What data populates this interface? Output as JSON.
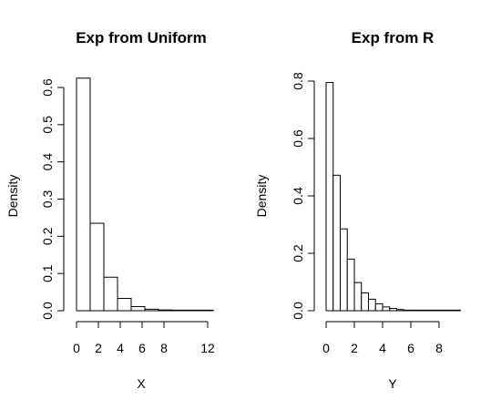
{
  "chart_data": [
    {
      "type": "bar",
      "title": "Exp from Uniform",
      "xlabel": "X",
      "ylabel": "Density",
      "bin_width": 1.25,
      "bins_start": [
        0,
        1.25,
        2.5,
        3.75,
        5,
        6.25,
        7.5,
        8.75,
        10,
        11.25
      ],
      "values": [
        0.625,
        0.235,
        0.09,
        0.033,
        0.011,
        0.004,
        0.002,
        0.001,
        0.0005,
        0.0003
      ],
      "xlim": [
        0,
        12
      ],
      "ylim": [
        0,
        0.6
      ],
      "xticks": [
        0,
        2,
        4,
        6,
        8,
        12
      ],
      "yticks": [
        0.0,
        0.1,
        0.2,
        0.3,
        0.4,
        0.5,
        0.6
      ],
      "ytick_labels": [
        "0.0",
        "0.1",
        "0.2",
        "0.3",
        "0.4",
        "0.5",
        "0.6"
      ]
    },
    {
      "type": "bar",
      "title": "Exp from R",
      "xlabel": "Y",
      "ylabel": "Density",
      "bin_width": 0.5,
      "bins_start": [
        0,
        0.5,
        1.0,
        1.5,
        2.0,
        2.5,
        3.0,
        3.5,
        4.0,
        4.5,
        5.0,
        5.5,
        6.0,
        6.5,
        7.0,
        7.5,
        8.0,
        8.5,
        9.0
      ],
      "values": [
        0.795,
        0.472,
        0.285,
        0.18,
        0.098,
        0.062,
        0.04,
        0.024,
        0.013,
        0.008,
        0.004,
        0.002,
        0.001,
        0.0008,
        0.0005,
        0.0003,
        0.0002,
        0.0001,
        0.0001
      ],
      "xlim": [
        0,
        8
      ],
      "ylim": [
        0,
        0.8
      ],
      "xticks": [
        0,
        2,
        4,
        6,
        8
      ],
      "yticks": [
        0.0,
        0.2,
        0.4,
        0.6,
        0.8
      ],
      "ytick_labels": [
        "0.0",
        "0.2",
        "0.4",
        "0.6",
        "0.8"
      ]
    }
  ]
}
